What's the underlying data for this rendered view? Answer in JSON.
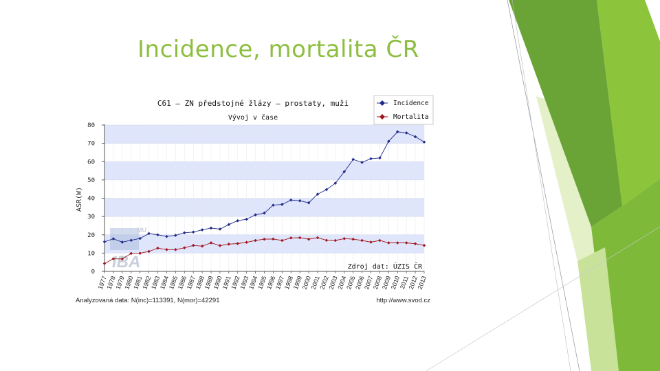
{
  "slide": {
    "title": "Incidence, mortalita ČR"
  },
  "colors": {
    "accent": "#8cbf3f",
    "incidence": "#1f2a8a",
    "mortality": "#a0161e",
    "band": "#dfe5fb"
  },
  "chart_data": {
    "type": "line",
    "title": "C61 – ZN předstojné žlázy – prostaty, muži",
    "subtitle": "Vývoj v čase",
    "ylabel": "ASR(W)",
    "xlabel": "",
    "ylim": [
      0,
      80
    ],
    "yticks": [
      0,
      10,
      20,
      30,
      40,
      50,
      60,
      70,
      80
    ],
    "grid": true,
    "legend_position": "top-right",
    "x": [
      "1977",
      "1978",
      "1979",
      "1980",
      "1981",
      "1982",
      "1983",
      "1984",
      "1985",
      "1986",
      "1987",
      "1988",
      "1989",
      "1990",
      "1991",
      "1992",
      "1993",
      "1994",
      "1995",
      "1996",
      "1997",
      "1998",
      "1999",
      "2000",
      "2001",
      "2002",
      "2003",
      "2004",
      "2005",
      "2006",
      "2007",
      "2008",
      "2009",
      "2010",
      "2011",
      "2012",
      "2013"
    ],
    "series": [
      {
        "name": "Incidence",
        "color": "#1f2a8a",
        "values": [
          16.2,
          17.8,
          16.0,
          17.0,
          18.0,
          20.7,
          20.0,
          19.1,
          19.7,
          21.1,
          21.5,
          22.7,
          23.7,
          23.1,
          25.6,
          27.7,
          28.5,
          30.9,
          31.9,
          36.2,
          36.6,
          39.0,
          38.6,
          37.5,
          42.2,
          44.7,
          48.2,
          54.5,
          61.2,
          59.6,
          61.6,
          62.0,
          71.1,
          76.3,
          75.7,
          73.6,
          70.7
        ]
      },
      {
        "name": "Mortalita",
        "color": "#a0161e",
        "values": [
          4.3,
          6.9,
          6.8,
          9.8,
          9.9,
          10.9,
          12.7,
          11.9,
          11.9,
          12.9,
          14.2,
          13.8,
          15.6,
          14.1,
          14.9,
          15.2,
          15.9,
          16.9,
          17.6,
          17.7,
          16.9,
          18.3,
          18.4,
          17.6,
          18.4,
          17.0,
          16.9,
          17.9,
          17.6,
          16.9,
          16.0,
          16.9,
          15.6,
          15.6,
          15.6,
          15.1,
          14.2
        ]
      }
    ],
    "annotations": {
      "source": "Zdroj dat: ÚZIS ČR",
      "analyzed": "Analyzovaná data: N(inc)=113391, N(mor)=42291",
      "url": "http://www.svod.cz",
      "watermark_mu": "MU",
      "watermark_iba": "IBA"
    }
  }
}
